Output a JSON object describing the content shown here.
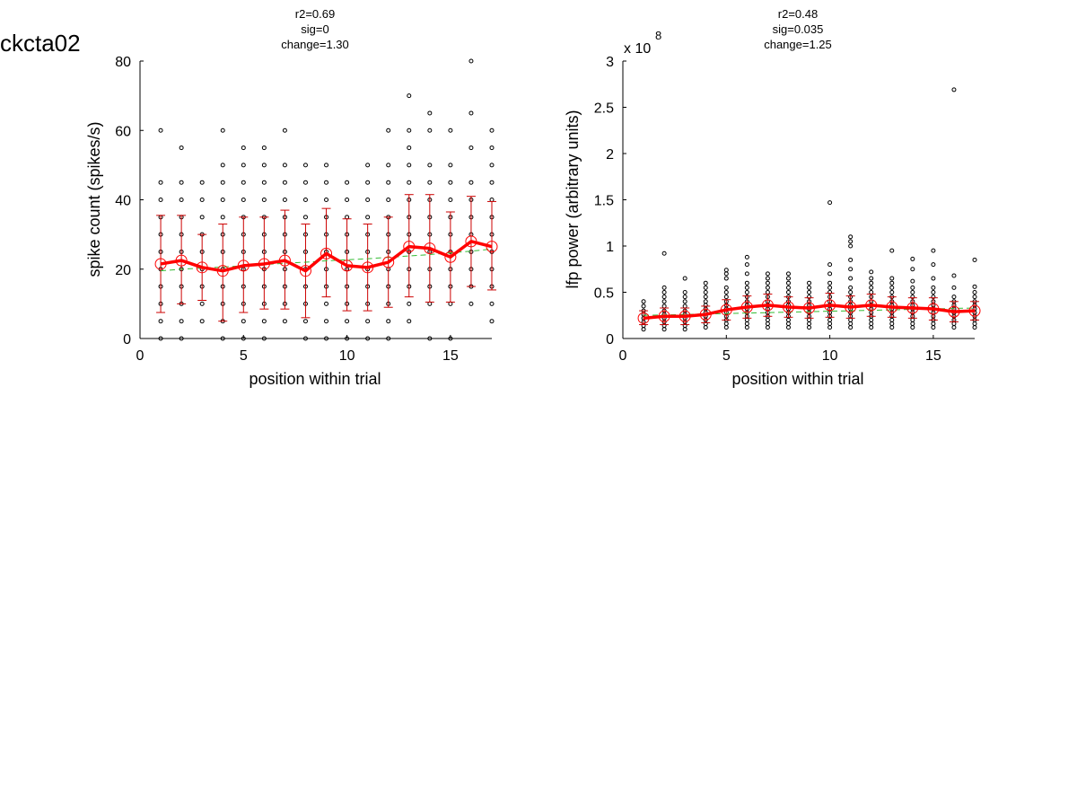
{
  "page_title": "ckcta02",
  "chart_data": [
    {
      "type": "scatter",
      "stats": {
        "r2": "r2=0.69",
        "sig": "sig=0",
        "change": "change=1.30"
      },
      "xlabel": "position within trial",
      "ylabel": "spike count (spikes/s)",
      "exponent_label": "",
      "xlim": [
        0,
        17
      ],
      "ylim": [
        0,
        80
      ],
      "xticks": [
        0,
        5,
        10,
        15
      ],
      "yticks": [
        0,
        20,
        40,
        60,
        80
      ],
      "xtick_labels": [
        "0",
        "5",
        "10",
        "15"
      ],
      "ytick_labels": [
        "0",
        "20",
        "40",
        "60",
        "80"
      ],
      "x": [
        1,
        2,
        3,
        4,
        5,
        6,
        7,
        8,
        9,
        10,
        11,
        12,
        13,
        14,
        15,
        16,
        17
      ],
      "mean": [
        21.5,
        22.5,
        20.5,
        19.5,
        21,
        21.5,
        22.5,
        19.5,
        24.5,
        21,
        20.5,
        22,
        26.5,
        26,
        23.5,
        28,
        26.5
      ],
      "err_low": [
        7.5,
        10,
        11,
        5,
        7.5,
        8.5,
        8.5,
        6,
        12,
        8,
        8,
        9,
        12,
        10.5,
        10.5,
        15,
        14
      ],
      "err_high": [
        35.5,
        35.5,
        30,
        33,
        35,
        35,
        37,
        33,
        37.5,
        34.5,
        33,
        35,
        41.5,
        41.5,
        36.5,
        41,
        39.5
      ],
      "fit": [
        19.5,
        20,
        20.3,
        20.6,
        21,
        21.3,
        21.7,
        22,
        22.4,
        22.7,
        23,
        23.4,
        23.8,
        24.2,
        24.7,
        25.2,
        25.8
      ],
      "raw_points": [
        [
          0,
          5,
          10,
          15,
          20,
          25,
          30,
          35,
          40,
          45,
          60
        ],
        [
          0,
          5,
          10,
          15,
          20,
          25,
          30,
          35,
          40,
          45,
          55
        ],
        [
          5,
          10,
          15,
          20,
          25,
          30,
          35,
          40,
          45
        ],
        [
          0,
          5,
          10,
          15,
          20,
          25,
          30,
          35,
          40,
          45,
          50,
          60
        ],
        [
          0,
          5,
          10,
          15,
          20,
          25,
          30,
          35,
          40,
          45,
          50,
          55
        ],
        [
          0,
          5,
          10,
          15,
          20,
          25,
          30,
          35,
          40,
          45,
          50,
          55
        ],
        [
          5,
          10,
          15,
          20,
          25,
          30,
          35,
          40,
          45,
          50,
          60
        ],
        [
          0,
          5,
          10,
          15,
          20,
          25,
          30,
          35,
          40,
          45,
          50
        ],
        [
          0,
          5,
          10,
          15,
          20,
          25,
          30,
          35,
          40,
          45,
          50
        ],
        [
          0,
          5,
          10,
          15,
          20,
          25,
          30,
          35,
          40,
          45
        ],
        [
          0,
          5,
          10,
          15,
          20,
          25,
          30,
          35,
          40,
          45,
          50
        ],
        [
          0,
          5,
          10,
          15,
          20,
          25,
          30,
          35,
          40,
          45,
          50,
          60
        ],
        [
          5,
          10,
          15,
          20,
          25,
          30,
          35,
          40,
          45,
          50,
          55,
          60,
          70
        ],
        [
          0,
          10,
          15,
          20,
          25,
          30,
          35,
          40,
          45,
          50,
          60,
          65
        ],
        [
          0,
          10,
          15,
          20,
          25,
          30,
          35,
          40,
          45,
          50,
          60
        ],
        [
          10,
          15,
          20,
          25,
          30,
          35,
          40,
          45,
          55,
          65,
          80
        ],
        [
          5,
          10,
          15,
          20,
          25,
          30,
          35,
          40,
          45,
          50,
          55,
          60
        ]
      ],
      "colors": {
        "mean": "#ff0000",
        "error": "#cc0000",
        "fit": "#33bb33",
        "raw": "#000000"
      }
    },
    {
      "type": "scatter",
      "stats": {
        "r2": "r2=0.48",
        "sig": "sig=0.035",
        "change": "change=1.25"
      },
      "xlabel": "position within trial",
      "ylabel": "lfp power (arbitrary units)",
      "exponent_label": "x 10",
      "exponent_power": "8",
      "xlim": [
        0,
        17
      ],
      "ylim": [
        0,
        3
      ],
      "xticks": [
        0,
        5,
        10,
        15
      ],
      "yticks": [
        0,
        0.5,
        1,
        1.5,
        2,
        2.5,
        3
      ],
      "xtick_labels": [
        "0",
        "5",
        "10",
        "15"
      ],
      "ytick_labels": [
        "0",
        "0.5",
        "1",
        "1.5",
        "2",
        "2.5",
        "3"
      ],
      "x": [
        1,
        2,
        3,
        4,
        5,
        6,
        7,
        8,
        9,
        10,
        11,
        12,
        13,
        14,
        15,
        16,
        17
      ],
      "mean": [
        0.22,
        0.24,
        0.24,
        0.26,
        0.31,
        0.34,
        0.36,
        0.34,
        0.33,
        0.36,
        0.34,
        0.36,
        0.34,
        0.33,
        0.32,
        0.29,
        0.3
      ],
      "err_low": [
        0.15,
        0.15,
        0.15,
        0.17,
        0.2,
        0.22,
        0.24,
        0.23,
        0.22,
        0.23,
        0.22,
        0.24,
        0.23,
        0.22,
        0.2,
        0.18,
        0.2
      ],
      "err_high": [
        0.3,
        0.33,
        0.33,
        0.35,
        0.42,
        0.46,
        0.48,
        0.45,
        0.44,
        0.49,
        0.46,
        0.48,
        0.45,
        0.44,
        0.44,
        0.4,
        0.4
      ],
      "fit": [
        0.25,
        0.255,
        0.26,
        0.265,
        0.27,
        0.275,
        0.28,
        0.285,
        0.29,
        0.295,
        0.3,
        0.305,
        0.31,
        0.315,
        0.32,
        0.325,
        0.33
      ],
      "raw_points": [
        [
          0.1,
          0.14,
          0.18,
          0.22,
          0.26,
          0.3,
          0.35,
          0.4
        ],
        [
          0.1,
          0.14,
          0.18,
          0.22,
          0.26,
          0.3,
          0.35,
          0.4,
          0.45,
          0.5,
          0.55,
          0.92
        ],
        [
          0.1,
          0.14,
          0.18,
          0.22,
          0.26,
          0.3,
          0.35,
          0.4,
          0.45,
          0.5,
          0.65
        ],
        [
          0.12,
          0.16,
          0.2,
          0.24,
          0.28,
          0.32,
          0.36,
          0.4,
          0.45,
          0.5,
          0.55,
          0.6
        ],
        [
          0.12,
          0.16,
          0.2,
          0.24,
          0.28,
          0.32,
          0.36,
          0.4,
          0.45,
          0.5,
          0.55,
          0.65,
          0.7,
          0.74
        ],
        [
          0.12,
          0.16,
          0.2,
          0.24,
          0.28,
          0.32,
          0.36,
          0.4,
          0.45,
          0.5,
          0.55,
          0.6,
          0.7,
          0.8,
          0.88
        ],
        [
          0.12,
          0.16,
          0.2,
          0.24,
          0.28,
          0.32,
          0.36,
          0.4,
          0.45,
          0.5,
          0.55,
          0.6,
          0.65,
          0.7
        ],
        [
          0.12,
          0.16,
          0.2,
          0.24,
          0.28,
          0.32,
          0.36,
          0.4,
          0.45,
          0.5,
          0.55,
          0.6,
          0.65,
          0.7
        ],
        [
          0.12,
          0.16,
          0.2,
          0.24,
          0.28,
          0.32,
          0.36,
          0.4,
          0.45,
          0.5,
          0.55,
          0.6
        ],
        [
          0.12,
          0.16,
          0.2,
          0.24,
          0.28,
          0.32,
          0.36,
          0.4,
          0.45,
          0.5,
          0.55,
          0.6,
          0.7,
          0.8,
          1.47
        ],
        [
          0.12,
          0.16,
          0.2,
          0.24,
          0.28,
          0.32,
          0.36,
          0.4,
          0.45,
          0.5,
          0.55,
          0.65,
          0.75,
          0.85,
          1.0,
          1.05,
          1.1
        ],
        [
          0.12,
          0.16,
          0.2,
          0.24,
          0.28,
          0.32,
          0.36,
          0.4,
          0.45,
          0.5,
          0.55,
          0.6,
          0.65,
          0.72
        ],
        [
          0.12,
          0.16,
          0.2,
          0.24,
          0.28,
          0.32,
          0.36,
          0.4,
          0.45,
          0.5,
          0.55,
          0.6,
          0.65,
          0.95
        ],
        [
          0.12,
          0.16,
          0.2,
          0.24,
          0.28,
          0.32,
          0.36,
          0.4,
          0.45,
          0.5,
          0.55,
          0.62,
          0.75,
          0.86
        ],
        [
          0.12,
          0.16,
          0.2,
          0.24,
          0.28,
          0.32,
          0.36,
          0.4,
          0.45,
          0.5,
          0.55,
          0.65,
          0.8,
          0.95
        ],
        [
          0.12,
          0.16,
          0.2,
          0.24,
          0.28,
          0.32,
          0.36,
          0.4,
          0.45,
          0.55,
          0.68,
          2.69
        ],
        [
          0.12,
          0.16,
          0.2,
          0.24,
          0.28,
          0.32,
          0.36,
          0.4,
          0.45,
          0.5,
          0.56,
          0.85
        ]
      ],
      "colors": {
        "mean": "#ff0000",
        "error": "#cc0000",
        "fit": "#33bb33",
        "raw": "#000000"
      }
    }
  ]
}
